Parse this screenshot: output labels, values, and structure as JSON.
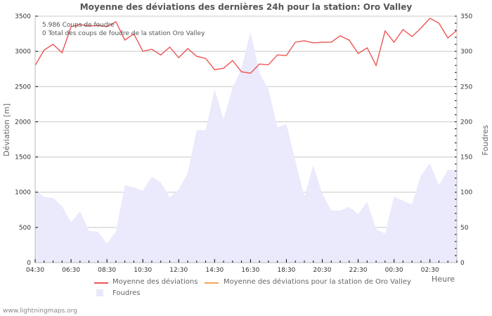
{
  "title": "Moyenne des déviations des dernières 24h pour la station: Oro Valley",
  "info": {
    "line1": "5.986  Coups de foudre",
    "line2": "0 Total des coups de foudre de la station Oro Valley"
  },
  "axes": {
    "y_left_title": "Déviation  [m]",
    "y_right_title": "Foudres",
    "x_title": "Heure",
    "y_left_ticks": [
      "0",
      "500",
      "1000",
      "1500",
      "2000",
      "2500",
      "3000",
      "3500"
    ],
    "y_right_ticks": [
      "0",
      "50",
      "100",
      "150",
      "200",
      "250",
      "300",
      "350"
    ],
    "x_ticks": [
      "04:30",
      "06:30",
      "08:30",
      "10:30",
      "12:30",
      "14:30",
      "16:30",
      "18:30",
      "20:30",
      "22:30",
      "00:30",
      "02:30"
    ]
  },
  "legend": [
    {
      "label": "Moyenne des déviations",
      "color": "#ee5555",
      "type": "line"
    },
    {
      "label": "Moyenne des déviations pour la station de Oro Valley",
      "color": "#f4a460",
      "type": "line"
    },
    {
      "label": "Foudres",
      "color": "#e8e8fb",
      "type": "area"
    }
  ],
  "footer": "www.lightningmaps.org",
  "colors": {
    "deviation_line": "#ee5555",
    "station_line": "#f4a460",
    "strikes_area": "#eaeafc",
    "grid": "#c8c8c8"
  },
  "chart_data": {
    "type": "line",
    "title": "Moyenne des déviations des dernières 24h pour la station: Oro Valley",
    "xlabel": "Heure",
    "ylabel": "Déviation  [m]",
    "y2label": "Foudres",
    "ylim": [
      0,
      3500
    ],
    "y2lim": [
      0,
      350
    ],
    "grid": true,
    "legend_position": "bottom",
    "x": [
      "04:30",
      "05:00",
      "05:30",
      "06:00",
      "06:30",
      "07:00",
      "07:30",
      "08:00",
      "08:30",
      "09:00",
      "09:30",
      "10:00",
      "10:30",
      "11:00",
      "11:30",
      "12:00",
      "12:30",
      "13:00",
      "13:30",
      "14:00",
      "14:30",
      "15:00",
      "15:30",
      "16:00",
      "16:30",
      "17:00",
      "17:30",
      "18:00",
      "18:30",
      "19:00",
      "19:30",
      "20:00",
      "20:30",
      "21:00",
      "21:30",
      "22:00",
      "22:30",
      "23:00",
      "23:30",
      "00:00",
      "00:30",
      "01:00",
      "01:30",
      "02:00",
      "02:30",
      "03:00",
      "03:30",
      "04:00"
    ],
    "series": [
      {
        "name": "Moyenne des déviations",
        "axis": "left",
        "type": "line",
        "values": [
          2800,
          3020,
          3100,
          2980,
          3350,
          3380,
          3360,
          3370,
          3350,
          3420,
          3160,
          3250,
          3000,
          3030,
          2950,
          3060,
          2910,
          3040,
          2930,
          2900,
          2740,
          2760,
          2870,
          2710,
          2690,
          2820,
          2810,
          2950,
          2940,
          3130,
          3150,
          3120,
          3130,
          3130,
          3220,
          3160,
          2970,
          3050,
          2800,
          3290,
          3130,
          3310,
          3210,
          3330,
          3470,
          3400,
          3190,
          3300
        ]
      },
      {
        "name": "Moyenne des déviations pour la station de Oro Valley",
        "axis": "left",
        "type": "line",
        "values": []
      },
      {
        "name": "Foudres",
        "axis": "right",
        "type": "area",
        "values": [
          104,
          93,
          92,
          80,
          57,
          73,
          45,
          44,
          27,
          44,
          110,
          107,
          102,
          122,
          114,
          93,
          104,
          127,
          188,
          188,
          246,
          204,
          248,
          276,
          328,
          270,
          246,
          192,
          197,
          145,
          94,
          138,
          98,
          74,
          74,
          79,
          69,
          86,
          48,
          41,
          94,
          88,
          83,
          124,
          141,
          110,
          132,
          132
        ]
      }
    ]
  }
}
